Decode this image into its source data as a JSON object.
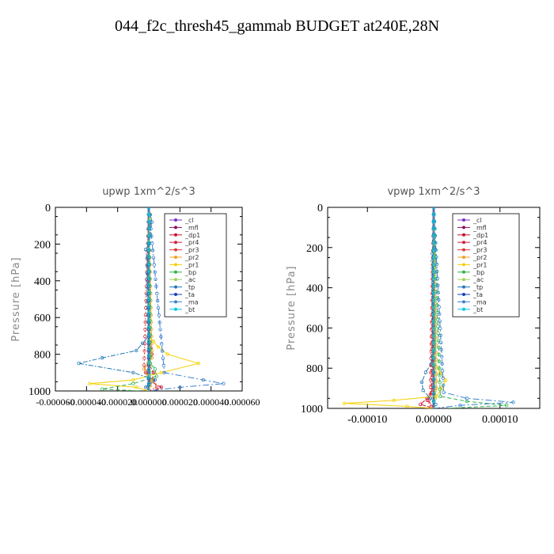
{
  "page": {
    "title": "044_f2c_thresh45_gammab  BUDGET at240E,28N"
  },
  "legend_entries": [
    "_cl",
    "_mfl",
    "_dp1",
    "_pr4",
    "_pr3",
    "_pr2",
    "_pr1",
    "_bp",
    "_ac",
    "_tp",
    "_ta",
    "_ma",
    "_bt"
  ],
  "chart_data": [
    {
      "type": "line",
      "title": "upwp   1xm^2/s^3",
      "xlabel": "",
      "ylabel": "Pressure [hPa]",
      "xlim": [
        -6e-05,
        6e-05
      ],
      "ylim": [
        1000,
        0
      ],
      "y_reversed": true,
      "xticks": [
        -6e-05,
        -4e-05,
        -2e-05,
        0.0,
        2e-05,
        4e-05,
        6e-05
      ],
      "xtick_labels": [
        "-0.000060",
        "-0.000040",
        "-0.000020",
        "0.000000",
        "0.000020",
        "0.000040",
        "0.000060"
      ],
      "yticks": [
        0,
        200,
        400,
        600,
        800,
        1000
      ],
      "ytick_labels": [
        "0",
        "200",
        "400",
        "600",
        "800",
        "1000"
      ],
      "legend_position": "top-right",
      "series": [
        {
          "name": "_cl",
          "color": "#7b2fbf",
          "y": [
            0,
            1000
          ],
          "values": [
            0,
            0
          ]
        },
        {
          "name": "_mfl",
          "color": "#8b1060",
          "y": [
            0,
            1000
          ],
          "values": [
            0,
            0
          ]
        },
        {
          "name": "_dp1",
          "color": "#c8102e",
          "y": [
            0,
            700,
            800,
            850,
            900,
            950,
            980,
            1000
          ],
          "values": [
            0,
            0,
            2e-06,
            0,
            3e-06,
            2e-06,
            8e-06,
            3e-06
          ]
        },
        {
          "name": "_pr4",
          "color": "#d4213d",
          "y": [
            0,
            850,
            900,
            950,
            1000
          ],
          "values": [
            0,
            1e-06,
            -2e-06,
            1e-06,
            0
          ]
        },
        {
          "name": "_pr3",
          "color": "#e03a3a",
          "y": [
            0,
            860,
            900,
            940,
            980,
            1000
          ],
          "values": [
            0,
            -3e-06,
            -2e-06,
            3e-06,
            5e-06,
            0
          ]
        },
        {
          "name": "_pr2",
          "color": "#f0a020",
          "y": [
            0,
            820,
            880,
            940,
            1000
          ],
          "values": [
            0,
            2e-06,
            -3e-06,
            2e-06,
            0
          ]
        },
        {
          "name": "_pr1",
          "color": "#f5d000",
          "y": [
            0,
            100,
            150,
            700,
            760,
            800,
            850,
            900,
            940,
            960,
            980,
            1000
          ],
          "values": [
            0,
            1e-06,
            0,
            0,
            6e-06,
            1.2e-05,
            3.2e-05,
            8e-06,
            -1e-05,
            -3.8e-05,
            -8e-06,
            0
          ]
        },
        {
          "name": "_bp",
          "color": "#2db34a",
          "y": [
            0,
            850,
            880,
            920,
            960,
            990,
            1000
          ],
          "values": [
            0,
            1e-06,
            4e-06,
            5e-06,
            -1e-05,
            -3e-05,
            -5e-06
          ]
        },
        {
          "name": "_ac",
          "color": "#a0d060",
          "y": [
            0,
            900,
            950,
            1000
          ],
          "values": [
            0,
            1e-06,
            2e-06,
            0
          ]
        },
        {
          "name": "_tp",
          "color": "#1f77b4",
          "y": [
            0,
            80,
            100,
            150,
            200,
            230,
            280,
            400,
            700,
            780,
            820,
            850,
            900,
            940,
            980,
            1000
          ],
          "values": [
            0,
            2e-06,
            1e-06,
            1e-06,
            0,
            -2e-06,
            -1e-06,
            -1e-06,
            0,
            -8e-06,
            -3e-05,
            -4.5e-05,
            -1e-05,
            4e-06,
            -2e-06,
            0
          ]
        },
        {
          "name": "_ta",
          "color": "#1a3fbf",
          "y": [
            0,
            900,
            1000
          ],
          "values": [
            0,
            0,
            0
          ]
        },
        {
          "name": "_ma",
          "color": "#3a80d0",
          "y": [
            0,
            900,
            940,
            960,
            980,
            1000
          ],
          "values": [
            0,
            1e-05,
            3.5e-05,
            4.8e-05,
            2e-05,
            0
          ]
        },
        {
          "name": "_bt",
          "color": "#00c8e0",
          "y": [
            0,
            1000
          ],
          "values": [
            0,
            0
          ]
        }
      ]
    },
    {
      "type": "line",
      "title": "vpwp   1xm^2/s^3",
      "xlabel": "",
      "ylabel": "Pressure [hPa]",
      "xlim": [
        -0.00016,
        0.00016
      ],
      "ylim": [
        1000,
        0
      ],
      "y_reversed": true,
      "xticks": [
        -0.0001,
        0,
        0.0001
      ],
      "xtick_labels": [
        "-0.00010",
        "0.00000",
        "0.00010"
      ],
      "yticks": [
        0,
        200,
        400,
        600,
        800,
        1000
      ],
      "ytick_labels": [
        "0",
        "200",
        "400",
        "600",
        "800",
        "1000"
      ],
      "legend_position": "top-right",
      "series": [
        {
          "name": "_cl",
          "color": "#7b2fbf",
          "y": [
            0,
            1000
          ],
          "values": [
            0,
            0
          ]
        },
        {
          "name": "_mfl",
          "color": "#8b1060",
          "y": [
            0,
            1000
          ],
          "values": [
            0,
            0
          ]
        },
        {
          "name": "_dp1",
          "color": "#c8102e",
          "y": [
            0,
            900,
            950,
            980,
            1000
          ],
          "values": [
            0,
            0,
            -1e-05,
            -2e-05,
            0
          ]
        },
        {
          "name": "_pr4",
          "color": "#d4213d",
          "y": [
            0,
            920,
            960,
            1000
          ],
          "values": [
            0,
            -3e-06,
            -8e-06,
            0
          ]
        },
        {
          "name": "_pr3",
          "color": "#e03a3a",
          "y": [
            0,
            930,
            960,
            990,
            1000
          ],
          "values": [
            0,
            -5e-06,
            -1e-05,
            -4e-06,
            0
          ]
        },
        {
          "name": "_pr2",
          "color": "#f0a020",
          "y": [
            0,
            900,
            950,
            1000
          ],
          "values": [
            0,
            4e-06,
            2e-06,
            0
          ]
        },
        {
          "name": "_pr1",
          "color": "#f5d000",
          "y": [
            0,
            780,
            820,
            860,
            900,
            940,
            960,
            975,
            990,
            1000
          ],
          "values": [
            0,
            0,
            1e-05,
            1.8e-05,
            1.2e-05,
            4e-06,
            -6e-05,
            -0.000135,
            -4e-05,
            0
          ]
        },
        {
          "name": "_bp",
          "color": "#2db34a",
          "y": [
            0,
            940,
            965,
            985,
            1000
          ],
          "values": [
            0,
            1e-05,
            5e-05,
            0.00011,
            2e-05
          ]
        },
        {
          "name": "_ac",
          "color": "#a0d060",
          "y": [
            0,
            950,
            1000
          ],
          "values": [
            0,
            2e-06,
            0
          ]
        },
        {
          "name": "_tp",
          "color": "#1f77b4",
          "y": [
            0,
            200,
            230,
            700,
            780,
            820,
            870,
            910,
            950,
            980,
            1000
          ],
          "values": [
            0,
            0,
            -2e-06,
            0,
            -4e-06,
            -1.2e-05,
            -1.8e-05,
            -1.6e-05,
            -5e-06,
            3e-06,
            0
          ]
        },
        {
          "name": "_ta",
          "color": "#1a3fbf",
          "y": [
            0,
            1000
          ],
          "values": [
            0,
            0
          ]
        },
        {
          "name": "_ma",
          "color": "#3a80d0",
          "y": [
            0,
            920,
            950,
            970,
            985,
            1000
          ],
          "values": [
            0,
            1.5e-05,
            5e-05,
            0.00012,
            4e-05,
            0
          ]
        },
        {
          "name": "_bt",
          "color": "#00c8e0",
          "y": [
            0,
            1000
          ],
          "values": [
            0,
            0
          ]
        }
      ]
    }
  ]
}
